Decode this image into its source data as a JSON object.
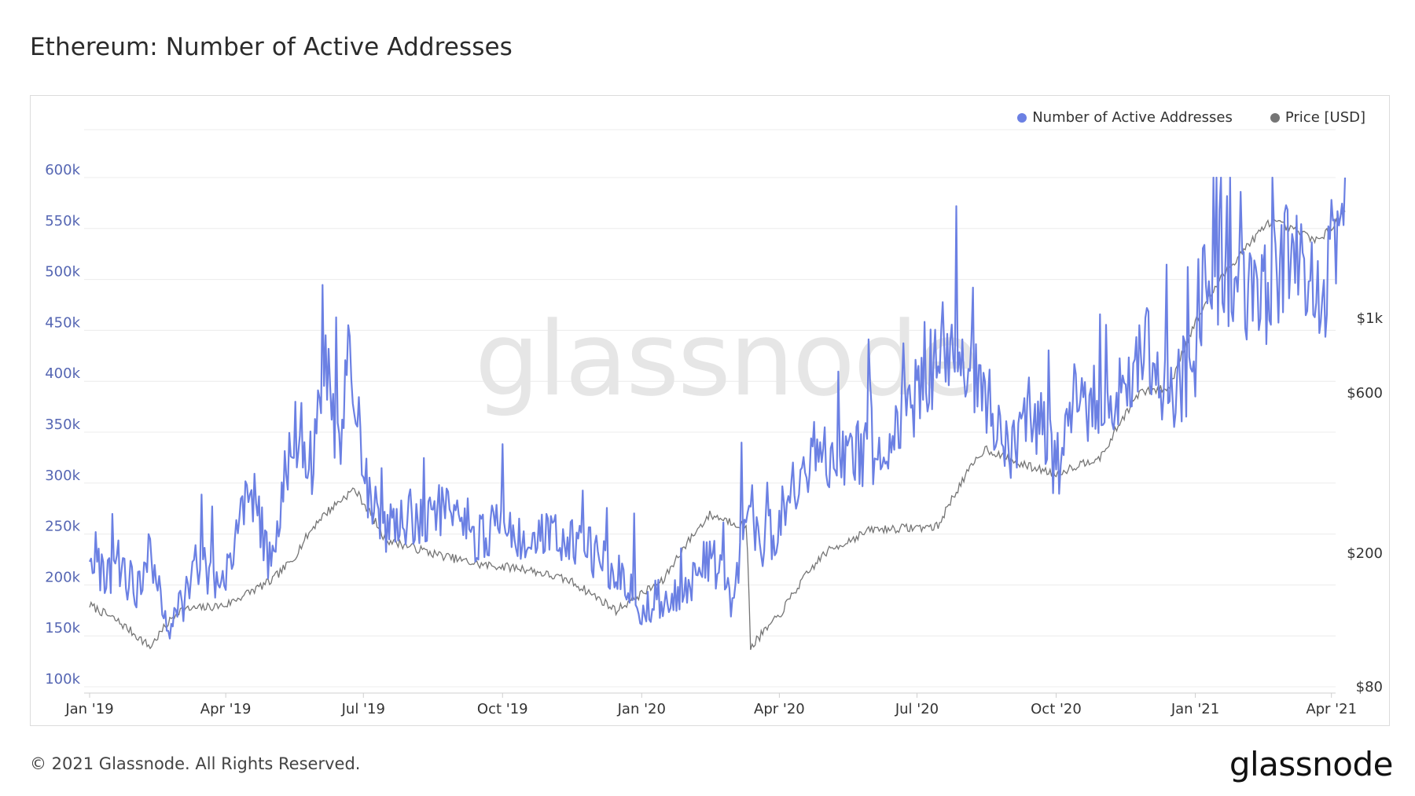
{
  "title": "Ethereum: Number of Active Addresses",
  "footer": {
    "copyright": "© 2021 Glassnode. All Rights Reserved.",
    "logo": "glassnode"
  },
  "watermark": "glassnode",
  "colors": {
    "addresses": "#6b80e3",
    "price": "#757575",
    "grid": "#ececec",
    "axis_text": "#5566b3"
  },
  "chart_data": {
    "type": "line",
    "title": "Ethereum: Number of Active Addresses",
    "x_ticks": [
      "Jan '19",
      "Apr '19",
      "Jul '19",
      "Oct '19",
      "Jan '20",
      "Apr '20",
      "Jul '20",
      "Oct '20",
      "Jan '21",
      "Apr '21"
    ],
    "y_left": {
      "ticks": [
        "100k",
        "150k",
        "200k",
        "250k",
        "300k",
        "350k",
        "400k",
        "450k",
        "500k",
        "550k",
        "600k"
      ],
      "ylim": [
        100000,
        600000
      ]
    },
    "y_right": {
      "ticks": [
        "$80",
        "$200",
        "$600",
        "$1k"
      ],
      "scale": "log"
    },
    "legend": {
      "placement": "top-right",
      "entries": [
        "Number of Active Addresses",
        "Price [USD]"
      ]
    },
    "grid": true,
    "series": [
      {
        "name": "Number of Active Addresses",
        "axis": "left",
        "x": [
          "2019-01-01",
          "2019-01-10",
          "2019-01-20",
          "2019-02-01",
          "2019-02-10",
          "2019-02-20",
          "2019-03-01",
          "2019-03-15",
          "2019-04-01",
          "2019-04-10",
          "2019-04-20",
          "2019-05-01",
          "2019-05-10",
          "2019-05-20",
          "2019-05-28",
          "2019-06-05",
          "2019-06-15",
          "2019-06-22",
          "2019-07-01",
          "2019-07-10",
          "2019-07-20",
          "2019-08-01",
          "2019-08-15",
          "2019-09-01",
          "2019-09-15",
          "2019-10-01",
          "2019-10-15",
          "2019-11-01",
          "2019-11-15",
          "2019-12-01",
          "2019-12-15",
          "2020-01-01",
          "2020-01-15",
          "2020-02-01",
          "2020-02-15",
          "2020-03-01",
          "2020-03-12",
          "2020-03-20",
          "2020-04-01",
          "2020-04-15",
          "2020-05-01",
          "2020-05-15",
          "2020-06-01",
          "2020-06-15",
          "2020-07-01",
          "2020-07-15",
          "2020-07-25",
          "2020-08-05",
          "2020-08-15",
          "2020-09-01",
          "2020-09-15",
          "2020-10-01",
          "2020-10-15",
          "2020-11-01",
          "2020-11-15",
          "2020-12-01",
          "2020-12-15",
          "2021-01-01",
          "2021-01-10",
          "2021-01-20",
          "2021-02-01",
          "2021-02-15",
          "2021-03-01",
          "2021-03-15",
          "2021-03-25",
          "2021-04-05",
          "2021-04-10"
        ],
        "values": [
          245000,
          205000,
          220000,
          195000,
          235000,
          160000,
          175000,
          215000,
          205000,
          270000,
          280000,
          215000,
          310000,
          360000,
          320000,
          420000,
          330000,
          440000,
          300000,
          270000,
          250000,
          265000,
          270000,
          280000,
          245000,
          255000,
          235000,
          245000,
          240000,
          230000,
          215000,
          175000,
          190000,
          195000,
          230000,
          185000,
          285000,
          240000,
          260000,
          305000,
          320000,
          335000,
          320000,
          340000,
          390000,
          420000,
          455000,
          400000,
          390000,
          330000,
          380000,
          310000,
          390000,
          360000,
          400000,
          430000,
          390000,
          420000,
          530000,
          480000,
          490000,
          480000,
          520000,
          500000,
          470000,
          560000,
          580000
        ]
      },
      {
        "name": "Price [USD]",
        "axis": "right",
        "x": [
          "2019-01-01",
          "2019-01-20",
          "2019-02-10",
          "2019-03-01",
          "2019-04-01",
          "2019-05-01",
          "2019-05-15",
          "2019-06-01",
          "2019-06-25",
          "2019-07-15",
          "2019-08-15",
          "2019-09-15",
          "2019-10-15",
          "2019-11-15",
          "2019-12-15",
          "2020-01-15",
          "2020-02-15",
          "2020-03-10",
          "2020-03-13",
          "2020-04-01",
          "2020-05-01",
          "2020-06-01",
          "2020-07-15",
          "2020-08-15",
          "2020-09-05",
          "2020-10-01",
          "2020-11-01",
          "2020-11-25",
          "2020-12-15",
          "2021-01-05",
          "2021-01-20",
          "2021-02-10",
          "2021-02-20",
          "2021-03-10",
          "2021-03-25",
          "2021-04-10"
        ],
        "values": [
          140,
          125,
          105,
          135,
          140,
          165,
          190,
          250,
          310,
          220,
          200,
          185,
          180,
          165,
          135,
          165,
          260,
          240,
          105,
          130,
          200,
          235,
          240,
          410,
          370,
          345,
          390,
          600,
          620,
          1050,
          1350,
          1750,
          1950,
          1800,
          1700,
          2100
        ]
      }
    ]
  }
}
